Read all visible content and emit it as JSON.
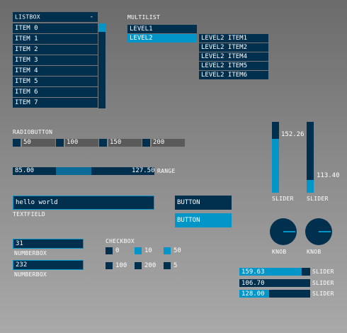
{
  "listbox": {
    "label": "LISTBOX",
    "toggle": "-",
    "items": [
      "ITEM 0",
      "ITEM 1",
      "ITEM 2",
      "ITEM 3",
      "ITEM 4",
      "ITEM 5",
      "ITEM 6",
      "ITEM 7"
    ]
  },
  "multilist": {
    "label": "MULTILIST",
    "level1": "LEVEL1",
    "level2": "LEVEL2",
    "sub_items": [
      "LEVEL2 ITEM1",
      "LEVEL2 ITEM2",
      "LEVEL2 ITEM4",
      "LEVEL2 ITEM5",
      "LEVEL2 ITEM6"
    ]
  },
  "radiobutton": {
    "label": "RADIOBUTTON",
    "options": [
      "50",
      "100",
      "150",
      "200"
    ]
  },
  "range": {
    "low": "85.00",
    "high": "127.50",
    "label": "RANGE"
  },
  "textfield": {
    "value": "hello world",
    "label": "TEXTFIELD"
  },
  "buttons": {
    "button1": "BUTTON",
    "button2": "BUTTON"
  },
  "sliders_vertical": [
    {
      "label": "SLIDER",
      "value": "152.26",
      "fraction": 0.76
    },
    {
      "label": "SLIDER",
      "value": "113.40",
      "fraction": 0.18
    }
  ],
  "knobs": [
    {
      "label": "KNOB"
    },
    {
      "label": "KNOB"
    }
  ],
  "numberboxes": [
    {
      "value": "31",
      "label": "NUMBERBOX"
    },
    {
      "value": "232",
      "label": "NUMBERBOX"
    }
  ],
  "checkbox": {
    "label": "CHECKBOX",
    "options": [
      "0",
      "10",
      "50",
      "100",
      "200",
      "5"
    ]
  },
  "sliders_horizontal": [
    {
      "value": "159.63",
      "label": "SLIDER",
      "fraction": 0.88
    },
    {
      "value": "106.70",
      "label": "SLIDER",
      "fraction": 0.0
    },
    {
      "value": "128.00",
      "label": "SLIDER",
      "fraction": 0.42
    }
  ],
  "colors": {
    "background": "#01304f",
    "foreground": "#0195c8",
    "active": "#00aaff",
    "label": "#ffffff"
  }
}
